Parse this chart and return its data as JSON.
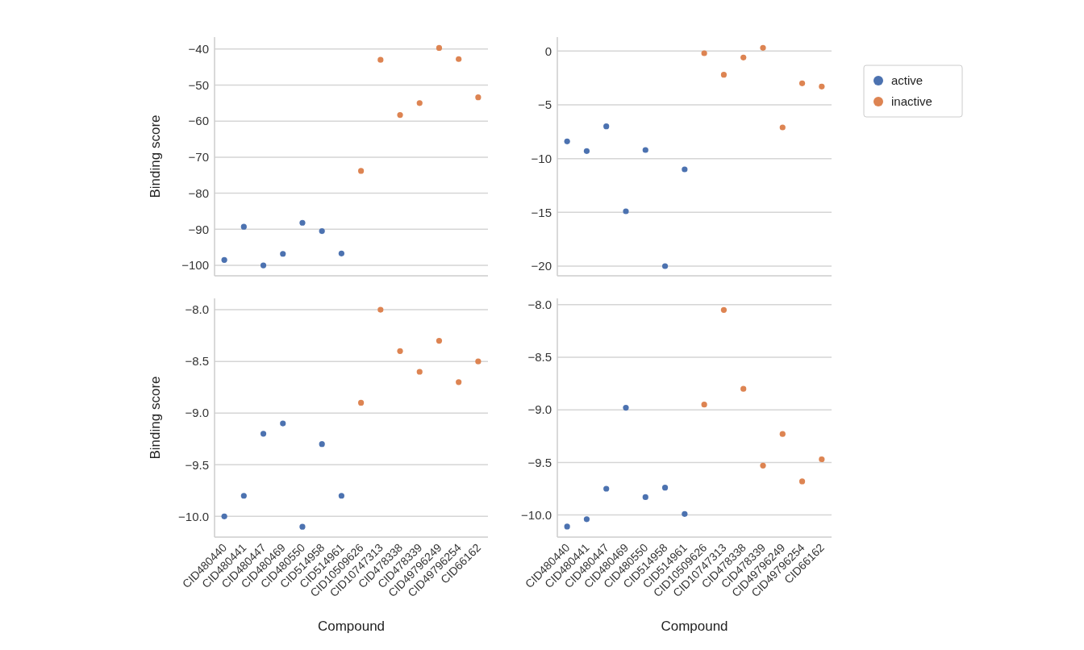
{
  "chart_data": [
    {
      "type": "scatter",
      "ylabel": "Binding score",
      "categories": [
        null,
        null,
        null,
        null,
        null,
        null,
        null,
        null,
        null,
        null,
        null,
        null,
        null,
        null
      ],
      "ylim": [
        -102.9,
        -36.7
      ],
      "yticks": [
        -100,
        -90,
        -80,
        -70,
        -60,
        -50,
        -40
      ],
      "grid": "y",
      "marker": "circle",
      "series": [
        {
          "color": "#4c72b0",
          "values": [
            -98.5,
            -89.3,
            -100,
            -96.8,
            -88.2,
            -90.5,
            -96.7,
            null,
            null,
            null,
            null,
            null,
            null,
            null
          ]
        },
        {
          "color": "#dd8452",
          "values": [
            null,
            null,
            null,
            null,
            null,
            null,
            null,
            -73.8,
            -43,
            -58.3,
            -55,
            -39.7,
            -42.8,
            -53.4
          ]
        }
      ]
    },
    {
      "type": "scatter",
      "categories": [
        null,
        null,
        null,
        null,
        null,
        null,
        null,
        null,
        null,
        null,
        null,
        null,
        null,
        null
      ],
      "ylim": [
        -20.9,
        1.3
      ],
      "yticks": [
        -20,
        -15,
        -10,
        -5,
        0
      ],
      "grid": "y",
      "marker": "circle",
      "legend": "right",
      "series": [
        {
          "name": "active",
          "color": "#4c72b0",
          "values": [
            -8.4,
            -9.3,
            -7.0,
            -14.9,
            -9.2,
            -20.0,
            -11.0,
            null,
            null,
            null,
            null,
            null,
            null,
            null
          ]
        },
        {
          "name": "inactive",
          "color": "#dd8452",
          "values": [
            null,
            null,
            null,
            null,
            null,
            null,
            null,
            -0.2,
            -2.2,
            -0.6,
            0.3,
            -7.1,
            -3.0,
            -3.3
          ]
        }
      ]
    },
    {
      "type": "scatter",
      "xlabel": "Compound",
      "ylabel": "Binding score",
      "categories": [
        "CID480440",
        "CID480441",
        "CID480447",
        "CID480469",
        "CID480550",
        "CID514958",
        "CID514961",
        "CID10509626",
        "CID10747313",
        "CID478338",
        "CID478339",
        "CID49796249",
        "CID49796254",
        "CID66162"
      ],
      "ylim": [
        -10.2,
        -7.89
      ],
      "yticks": [
        {
          "value": -10,
          "label": "−10.0"
        },
        {
          "value": -9.5,
          "label": "−9.5"
        },
        {
          "value": -9,
          "label": "−9.0"
        },
        {
          "value": -8.5,
          "label": "−8.5"
        },
        {
          "value": -8,
          "label": "−8.0"
        }
      ],
      "grid": "y",
      "marker": "circle",
      "series": [
        {
          "color": "#4c72b0",
          "values": [
            -10.0,
            -9.8,
            -9.2,
            -9.1,
            -10.1,
            -9.3,
            -9.8,
            null,
            null,
            null,
            null,
            null,
            null,
            null
          ]
        },
        {
          "color": "#dd8452",
          "values": [
            null,
            null,
            null,
            null,
            null,
            null,
            null,
            -8.9,
            -8.0,
            -8.4,
            -8.6,
            -8.3,
            -8.7,
            -8.5
          ]
        }
      ]
    },
    {
      "type": "scatter",
      "xlabel": "Compound",
      "categories": [
        "CID480440",
        "CID480441",
        "CID480447",
        "CID480469",
        "CID480550",
        "CID514958",
        "CID514961",
        "CID10509626",
        "CID10747313",
        "CID478338",
        "CID478339",
        "CID49796249",
        "CID49796254",
        "CID66162"
      ],
      "ylim": [
        -10.21,
        -7.94
      ],
      "yticks": [
        {
          "value": -10,
          "label": "−10.0"
        },
        {
          "value": -9.5,
          "label": "−9.5"
        },
        {
          "value": -9,
          "label": "−9.0"
        },
        {
          "value": -8.5,
          "label": "−8.5"
        },
        {
          "value": -8,
          "label": "−8.0"
        }
      ],
      "grid": "y",
      "marker": "circle",
      "series": [
        {
          "color": "#4c72b0",
          "values": [
            -10.11,
            -10.04,
            -9.75,
            -8.98,
            -9.83,
            -9.74,
            -9.99,
            null,
            null,
            null,
            null,
            null,
            null,
            null
          ]
        },
        {
          "color": "#dd8452",
          "values": [
            null,
            null,
            null,
            null,
            null,
            null,
            null,
            -8.95,
            -8.05,
            -8.8,
            -9.53,
            -9.23,
            -9.68,
            -9.47
          ]
        }
      ]
    }
  ]
}
